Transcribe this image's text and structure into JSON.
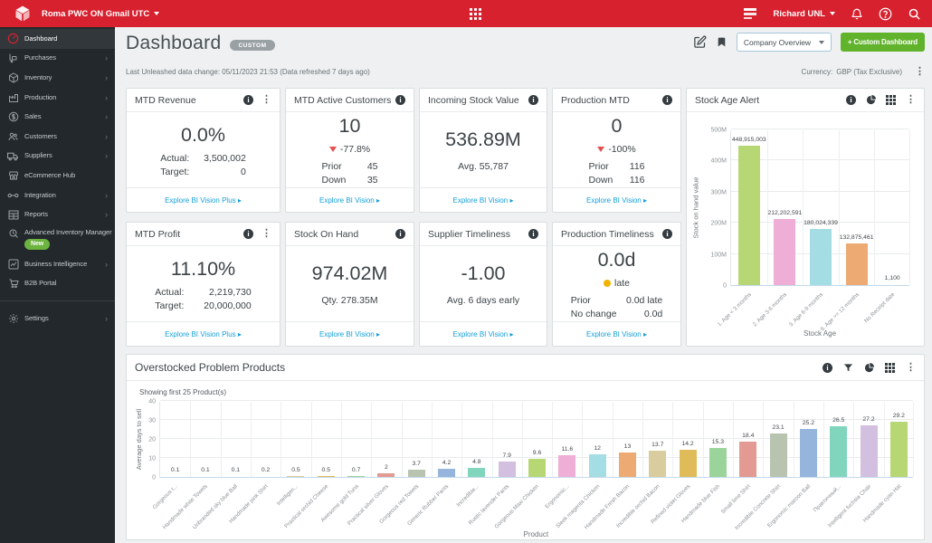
{
  "topbar": {
    "org": "Roma PWC ON Gmail UTC",
    "user": "Richard UNL"
  },
  "sidebar": {
    "items": [
      {
        "label": "Dashboard",
        "icon": "dashboard",
        "active": true
      },
      {
        "label": "Purchases",
        "icon": "purchases",
        "chevron": true
      },
      {
        "label": "Inventory",
        "icon": "inventory",
        "chevron": true
      },
      {
        "label": "Production",
        "icon": "production",
        "chevron": true
      },
      {
        "label": "Sales",
        "icon": "sales",
        "chevron": true
      },
      {
        "label": "Customers",
        "icon": "customers",
        "chevron": true
      },
      {
        "label": "Suppliers",
        "icon": "suppliers",
        "chevron": true
      },
      {
        "label": "eCommerce Hub",
        "icon": "ecommerce"
      },
      {
        "label": "Integration",
        "icon": "integration",
        "chevron": true
      },
      {
        "label": "Reports",
        "icon": "reports",
        "chevron": true
      },
      {
        "label": "Advanced Inventory Manager",
        "icon": "aim",
        "badge": "New"
      },
      {
        "label": "Business Intelligence",
        "icon": "bi",
        "chevron": true
      },
      {
        "label": "B2B Portal",
        "icon": "b2b"
      },
      {
        "divider": true
      },
      {
        "label": "Settings",
        "icon": "settings",
        "chevron": true
      }
    ]
  },
  "header": {
    "title": "Dashboard",
    "badge": "CUSTOM",
    "view_select": "Company Overview",
    "custom_dashboard_button": "+ Custom Dashboard"
  },
  "meta": {
    "last_change": "Last Unleashed data change: 05/11/2023 21:53 (Data refreshed 7 days ago)",
    "currency_label": "Currency:",
    "currency_value": "GBP (Tax Exclusive)"
  },
  "kpis": [
    {
      "title": "MTD Revenue",
      "value": "0.0%",
      "rows": [
        {
          "label": "Actual:",
          "value": "3,500,002"
        },
        {
          "label": "Target:",
          "value": "0"
        }
      ],
      "footer": "Explore BI Vision Plus",
      "menu": true
    },
    {
      "title": "MTD Active Customers",
      "value": "10",
      "delta": {
        "direction": "down",
        "label": "-77.8%"
      },
      "rows": [
        {
          "label": "Prior",
          "value": "45"
        },
        {
          "label": "Down",
          "value": "35"
        }
      ],
      "footer": "Explore BI Vision"
    },
    {
      "title": "Incoming Stock Value",
      "value": "536.89M",
      "subtext": "Avg. 55,787",
      "footer": "Explore BI Vision"
    },
    {
      "title": "Production MTD",
      "value": "0",
      "delta": {
        "direction": "down",
        "label": "-100%"
      },
      "rows": [
        {
          "label": "Prior",
          "value": "116"
        },
        {
          "label": "Down",
          "value": "116"
        }
      ],
      "footer": "Explore BI Vision"
    },
    {
      "title": "MTD Profit",
      "value": "11.10%",
      "rows": [
        {
          "label": "Actual:",
          "value": "2,219,730"
        },
        {
          "label": "Target:",
          "value": "20,000,000"
        }
      ],
      "footer": "Explore BI Vision Plus",
      "menu": true
    },
    {
      "title": "Stock On Hand",
      "value": "974.02M",
      "subtext": "Qty. 278.35M",
      "footer": "Explore BI Vision"
    },
    {
      "title": "Supplier Timeliness",
      "value": "-1.00",
      "subtext": "Avg. 6 days early",
      "footer": "Explore BI Vision"
    },
    {
      "title": "Production Timeliness",
      "value": "0.0d",
      "status_dot": {
        "color": "#f0b400",
        "label": "late"
      },
      "rows": [
        {
          "label": "Prior",
          "value": "0.0d late"
        },
        {
          "label": "No change",
          "value": "0.0d"
        }
      ],
      "footer": "Explore BI Vision"
    }
  ],
  "chart_data": [
    {
      "type": "bar",
      "title": "Stock Age Alert",
      "categories": [
        "1. Age < 3 months",
        "2. Age 3-6 months",
        "3. Age 6-9 months",
        "6. Age >= 12 months",
        "No Receipt date"
      ],
      "values": [
        448915003,
        212202591,
        180024339,
        132875461,
        1100
      ],
      "value_labels": [
        "448,915,003",
        "212,202,591",
        "180,024,339",
        "132,875,461",
        "1,100"
      ],
      "colors": [
        "#b7d774",
        "#efaed6",
        "#a5dde4",
        "#edaa72",
        "#d9cd9f"
      ],
      "xlabel": "Stock Age",
      "ylabel": "Stock on hand value",
      "ylim": [
        0,
        500000000
      ],
      "yticks": [
        {
          "v": 0,
          "t": "0"
        },
        {
          "v": 100000000,
          "t": "100M"
        },
        {
          "v": 200000000,
          "t": "200M"
        },
        {
          "v": 300000000,
          "t": "300M"
        },
        {
          "v": 400000000,
          "t": "400M"
        },
        {
          "v": 500000000,
          "t": "500M"
        }
      ]
    },
    {
      "type": "bar",
      "title": "Overstocked Problem Products",
      "subtitle": "Showing first 25 Product(s)",
      "categories": [
        "Gorgeous t...",
        "Handmade white Towels",
        "Unbranded sky blue Ball",
        "Handmade pink Shirt",
        "Intelligen...",
        "Practical orchid Cheese",
        "Awesome gold Tuna",
        "Practical silver Gloves",
        "Gorgeous red Towels",
        "Generic Rubber Pants",
        "Incredible...",
        "Rustic lavender Pants",
        "Gorgeous Maxi Chicken",
        "Ergonomic...",
        "Sleek magenta Chicken",
        "Handmade Fresh Bacon",
        "Incredible orchid Bacon",
        "Refined violet Gloves",
        "Handmade blue Fish",
        "Small lime Shirt",
        "Incredible Concrete Shirt",
        "Ergonomic maroon Ball",
        "Практичный...",
        "Intelligent fuchsia Chair",
        "Handmade cyan Hat"
      ],
      "values": [
        0.1,
        0.1,
        0.1,
        0.2,
        0.5,
        0.5,
        0.7,
        2,
        3.7,
        4.2,
        4.8,
        7.9,
        9.6,
        11.6,
        12,
        13,
        13.7,
        14.2,
        15.3,
        18.4,
        23.1,
        25.2,
        26.5,
        27.2,
        29.2
      ],
      "value_labels": [
        "0.1",
        "0.1",
        "0.1",
        "0.2",
        "0.5",
        "0.5",
        "0.7",
        "2",
        "3.7",
        "4.2",
        "4.8",
        "7.9",
        "9.6",
        "11.6",
        "12",
        "13",
        "13.7",
        "14.2",
        "15.3",
        "18.4",
        "23.1",
        "25.2",
        "26.5",
        "27.2",
        "29.2"
      ],
      "palette": [
        "#b7d774",
        "#efaed6",
        "#a5dde4",
        "#edaa72",
        "#d9cd9f",
        "#dfbc59",
        "#9bd49b",
        "#e39a92",
        "#b8c3b0",
        "#96b5dc",
        "#82d5bd",
        "#d3bfe0"
      ],
      "xlabel": "Product",
      "ylabel": "Average days to sell",
      "ylim": [
        0,
        40
      ],
      "yticks": [
        {
          "v": 0,
          "t": "0"
        },
        {
          "v": 10,
          "t": "10"
        },
        {
          "v": 20,
          "t": "20"
        },
        {
          "v": 30,
          "t": "30"
        },
        {
          "v": 40,
          "t": "40"
        }
      ]
    }
  ]
}
